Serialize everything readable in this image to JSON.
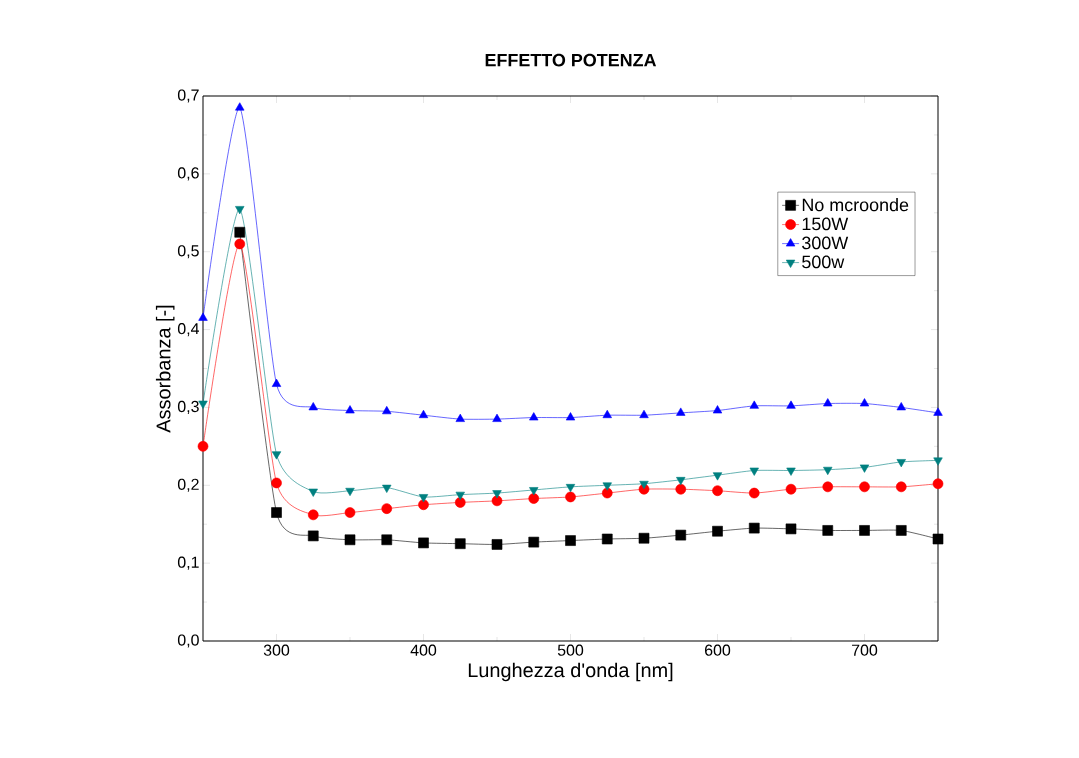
{
  "chart_data": {
    "type": "line",
    "title": "EFFETTO POTENZA",
    "xlabel": "Lunghezza d'onda [nm]",
    "ylabel": "Assorbanza [-]",
    "x": [
      250,
      275,
      300,
      325,
      350,
      375,
      400,
      425,
      450,
      475,
      500,
      525,
      550,
      575,
      600,
      625,
      650,
      675,
      700,
      725,
      750
    ],
    "series": [
      {
        "name": "No mcroonde",
        "color": "#000000",
        "marker": "square",
        "values": [
          null,
          0.525,
          0.165,
          0.135,
          0.13,
          0.13,
          0.126,
          0.125,
          0.124,
          0.127,
          0.129,
          0.131,
          0.132,
          0.136,
          0.141,
          0.145,
          0.144,
          0.142,
          0.142,
          0.142,
          0.131
        ]
      },
      {
        "name": "150W",
        "color": "#ff0000",
        "marker": "circle",
        "values": [
          0.25,
          0.51,
          0.203,
          0.162,
          0.165,
          0.17,
          0.175,
          0.178,
          0.18,
          0.183,
          0.185,
          0.19,
          0.195,
          0.195,
          0.193,
          0.19,
          0.195,
          0.198,
          0.198,
          0.198,
          0.202
        ]
      },
      {
        "name": "300W",
        "color": "#0000ff",
        "marker": "triangle",
        "values": [
          0.415,
          0.685,
          0.33,
          0.3,
          0.296,
          0.295,
          0.29,
          0.285,
          0.285,
          0.287,
          0.287,
          0.29,
          0.29,
          0.293,
          0.296,
          0.302,
          0.302,
          0.305,
          0.305,
          0.3,
          0.293
        ]
      },
      {
        "name": "500w",
        "color": "#008080",
        "marker": "triangle-down",
        "values": [
          0.305,
          0.555,
          0.24,
          0.192,
          0.193,
          0.197,
          0.185,
          0.188,
          0.19,
          0.194,
          0.198,
          0.2,
          0.202,
          0.207,
          0.213,
          0.219,
          0.219,
          0.22,
          0.223,
          0.23,
          0.232
        ]
      }
    ],
    "xlim": [
      250,
      750
    ],
    "ylim": [
      0,
      0.7
    ],
    "xticks": [
      300,
      400,
      500,
      600,
      700
    ],
    "yticks": [
      {
        "value": 0,
        "label": "0,0"
      },
      {
        "value": 0.1,
        "label": "0,1"
      },
      {
        "value": 0.2,
        "label": "0,2"
      },
      {
        "value": 0.3,
        "label": "0,3"
      },
      {
        "value": 0.4,
        "label": "0,4"
      },
      {
        "value": 0.5,
        "label": "0,5"
      },
      {
        "value": 0.6,
        "label": "0,6"
      },
      {
        "value": 0.7,
        "label": "0,7"
      }
    ],
    "grid": false,
    "legend": "top right",
    "line_style": "solid"
  }
}
